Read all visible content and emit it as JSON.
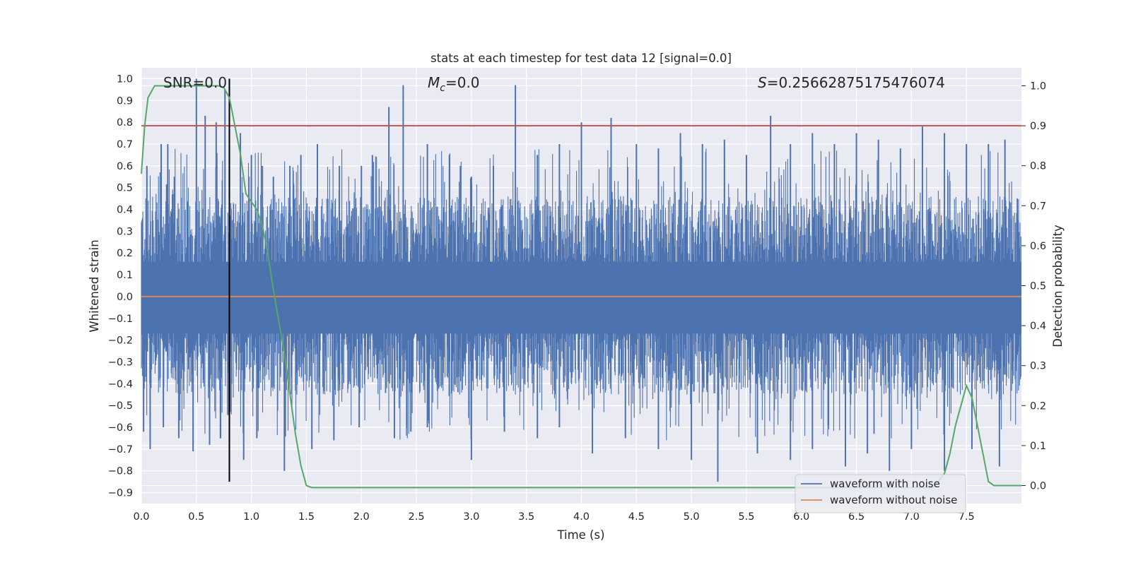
{
  "chart_data": {
    "type": "line",
    "title": "stats at each timestep for test data 12 [signal=0.0]",
    "xlabel": "Time (s)",
    "ylabel_left": "Whitened strain",
    "ylabel_right": "Detection probability",
    "xlim": [
      0.0,
      8.0
    ],
    "ylim_left": [
      -0.95,
      1.05
    ],
    "ylim_right": [
      -0.045,
      1.045
    ],
    "x_ticks": [
      "0.0",
      "0.5",
      "1.0",
      "1.5",
      "2.0",
      "2.5",
      "3.0",
      "3.5",
      "4.0",
      "4.5",
      "5.0",
      "5.5",
      "6.0",
      "6.5",
      "7.0",
      "7.5"
    ],
    "y_left_ticks": [
      "-0.9",
      "-0.8",
      "-0.7",
      "-0.6",
      "-0.5",
      "-0.4",
      "-0.3",
      "-0.2",
      "-0.1",
      "0.0",
      "0.1",
      "0.2",
      "0.3",
      "0.4",
      "0.5",
      "0.6",
      "0.7",
      "0.8",
      "0.9",
      "1.0"
    ],
    "y_right_ticks": [
      "0.0",
      "0.1",
      "0.2",
      "0.3",
      "0.4",
      "0.5",
      "0.6",
      "0.7",
      "0.8",
      "0.9",
      "1.0"
    ],
    "grid": true,
    "legend_position": "lower-right",
    "annotations": {
      "snr": "SNR=0.0",
      "mc_symbol": "M",
      "mc_sub": "c",
      "mc_value": "=0.0",
      "s_symbol": "S",
      "s_value": "=0.25662875175476074"
    },
    "series": [
      {
        "name": "waveform with noise",
        "color": "#4c72b0",
        "note": "dense noise trace, roughly symmetric",
        "peak_times": [
          0.05,
          0.18,
          0.24,
          0.3,
          0.5,
          0.58,
          0.68,
          0.76,
          0.9,
          1.0,
          1.1,
          1.2,
          1.35,
          1.45,
          1.6,
          1.8,
          2.0,
          2.1,
          2.25,
          2.38,
          2.6,
          2.8,
          2.9,
          3.0,
          3.2,
          3.4,
          3.6,
          3.8,
          4.0,
          4.27,
          4.5,
          4.7,
          4.9,
          5.1,
          5.3,
          5.5,
          5.72,
          5.9,
          6.1,
          6.3,
          6.5,
          6.7,
          6.9,
          7.1,
          7.3,
          7.5,
          7.7,
          7.85
        ],
        "peak_values": [
          0.6,
          0.7,
          0.7,
          0.55,
          1.0,
          0.83,
          0.8,
          0.95,
          0.75,
          0.65,
          0.6,
          0.55,
          0.6,
          0.65,
          0.7,
          0.6,
          0.6,
          0.65,
          0.87,
          0.97,
          0.7,
          0.65,
          0.6,
          0.55,
          0.6,
          0.97,
          0.65,
          0.7,
          0.8,
          0.82,
          0.7,
          0.68,
          0.75,
          0.7,
          0.72,
          0.65,
          0.83,
          0.7,
          0.75,
          0.7,
          0.75,
          0.72,
          0.68,
          0.78,
          0.75,
          0.7,
          0.7,
          0.72
        ],
        "trough_times": [
          0.02,
          0.08,
          0.2,
          0.34,
          0.47,
          0.62,
          0.72,
          0.93,
          1.05,
          1.3,
          1.55,
          1.75,
          1.98,
          2.3,
          2.45,
          2.6,
          3.0,
          3.3,
          3.6,
          3.8,
          4.1,
          4.4,
          4.7,
          5.0,
          5.24,
          5.6,
          5.9,
          6.1,
          6.4,
          6.6,
          6.8,
          7.0,
          7.3,
          7.55,
          7.8
        ],
        "trough_values": [
          -0.62,
          -0.7,
          -0.6,
          -0.65,
          -0.71,
          -0.68,
          -0.65,
          -0.75,
          -0.65,
          -0.8,
          -0.7,
          -0.66,
          -0.6,
          -0.65,
          -0.62,
          -0.6,
          -0.75,
          -0.62,
          -0.65,
          -0.6,
          -0.72,
          -0.65,
          -0.7,
          -0.75,
          -0.85,
          -0.72,
          -0.75,
          -0.7,
          -0.78,
          -0.72,
          -0.8,
          -0.7,
          -0.8,
          -0.7,
          -0.78
        ]
      },
      {
        "name": "waveform without noise",
        "color": "#dd8452",
        "x": [
          0.0,
          8.0
        ],
        "y": [
          0.0,
          0.0
        ]
      },
      {
        "name": "",
        "axis": "right",
        "color": "#55a868",
        "x": [
          0.0,
          0.03,
          0.06,
          0.12,
          0.2,
          0.3,
          0.4,
          0.5,
          0.6,
          0.7,
          0.75,
          0.8,
          0.85,
          0.9,
          0.95,
          1.0,
          1.05,
          1.1,
          1.15,
          1.2,
          1.25,
          1.3,
          1.35,
          1.4,
          1.45,
          1.5,
          1.55,
          1.6,
          2.0,
          3.0,
          4.0,
          5.0,
          6.0,
          7.0,
          7.2,
          7.3,
          7.35,
          7.4,
          7.45,
          7.5,
          7.55,
          7.6,
          7.65,
          7.7,
          7.75,
          7.8,
          7.9,
          8.0
        ],
        "y": [
          0.78,
          0.9,
          0.97,
          1.0,
          1.0,
          1.0,
          1.0,
          1.0,
          1.0,
          1.0,
          0.995,
          0.97,
          0.9,
          0.83,
          0.73,
          0.71,
          0.69,
          0.65,
          0.58,
          0.49,
          0.41,
          0.33,
          0.23,
          0.13,
          0.05,
          0.0,
          -0.005,
          -0.005,
          -0.005,
          -0.005,
          -0.005,
          -0.005,
          -0.005,
          -0.005,
          -0.005,
          0.03,
          0.08,
          0.15,
          0.2,
          0.25,
          0.22,
          0.15,
          0.08,
          0.01,
          0.0,
          0.0,
          0.0,
          0.0
        ]
      }
    ],
    "threshold_line": {
      "axis": "right",
      "value": 0.9,
      "color": "#c44e52"
    },
    "marker_line": {
      "x": 0.8,
      "y_range": [
        -0.85,
        1.0
      ],
      "color": "#000000"
    }
  }
}
